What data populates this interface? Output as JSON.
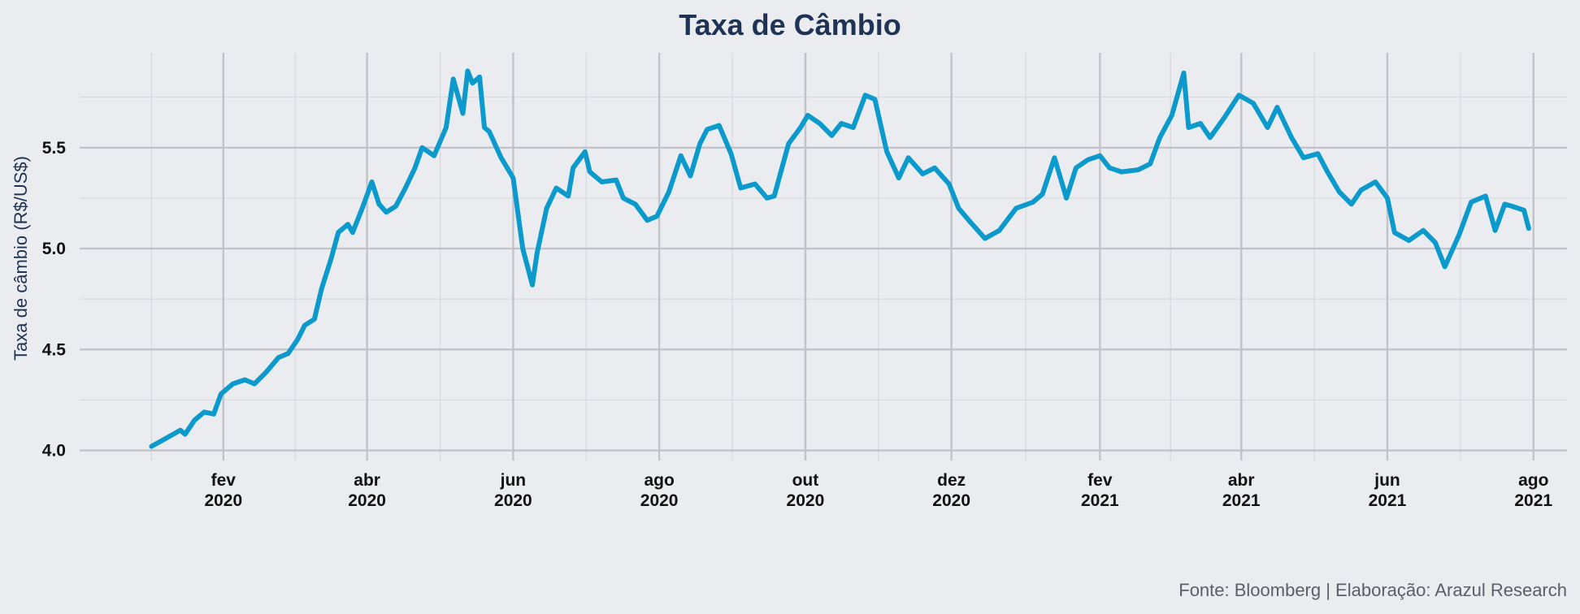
{
  "chart_data": {
    "type": "line",
    "title": "Taxa de Câmbio",
    "xlabel": "",
    "ylabel": "Taxa de câmbio (R$/US$)",
    "caption": "Fonte: Bloomberg | Elaboração: Arazul Research",
    "ylim": [
      3.95,
      5.97
    ],
    "xlim": [
      "2019-12-03",
      "2021-08-15"
    ],
    "y_ticks": [
      {
        "value": 4.0,
        "label": "4.0"
      },
      {
        "value": 4.5,
        "label": "4.5"
      },
      {
        "value": 5.0,
        "label": "5.0"
      },
      {
        "value": 5.5,
        "label": "5.5"
      }
    ],
    "x_ticks": [
      {
        "date": "2020-02-01",
        "label": [
          "fev",
          "2020"
        ]
      },
      {
        "date": "2020-04-01",
        "label": [
          "abr",
          "2020"
        ]
      },
      {
        "date": "2020-06-01",
        "label": [
          "jun",
          "2020"
        ]
      },
      {
        "date": "2020-08-01",
        "label": [
          "ago",
          "2020"
        ]
      },
      {
        "date": "2020-10-01",
        "label": [
          "out",
          "2020"
        ]
      },
      {
        "date": "2020-12-01",
        "label": [
          "dez",
          "2020"
        ]
      },
      {
        "date": "2021-02-01",
        "label": [
          "fev",
          "2021"
        ]
      },
      {
        "date": "2021-04-01",
        "label": [
          "abr",
          "2021"
        ]
      },
      {
        "date": "2021-06-01",
        "label": [
          "jun",
          "2021"
        ]
      },
      {
        "date": "2021-08-01",
        "label": [
          "ago",
          "2021"
        ]
      }
    ],
    "grid": true,
    "line_color": "#0b9acb",
    "series": [
      {
        "x": [
          "2020-01-02",
          "2020-01-08",
          "2020-01-14",
          "2020-01-16",
          "2020-01-20",
          "2020-01-24",
          "2020-01-28",
          "2020-01-31",
          "2020-02-05",
          "2020-02-10",
          "2020-02-14",
          "2020-02-19",
          "2020-02-24",
          "2020-02-28",
          "2020-03-03",
          "2020-03-06",
          "2020-03-10",
          "2020-03-13",
          "2020-03-17",
          "2020-03-20",
          "2020-03-24",
          "2020-03-26",
          "2020-03-30",
          "2020-04-03",
          "2020-04-06",
          "2020-04-09",
          "2020-04-13",
          "2020-04-17",
          "2020-04-21",
          "2020-04-24",
          "2020-04-29",
          "2020-05-04",
          "2020-05-07",
          "2020-05-11",
          "2020-05-13",
          "2020-05-15",
          "2020-05-18",
          "2020-05-20",
          "2020-05-22",
          "2020-05-27",
          "2020-06-01",
          "2020-06-05",
          "2020-06-09",
          "2020-06-11",
          "2020-06-15",
          "2020-06-19",
          "2020-06-24",
          "2020-06-26",
          "2020-07-01",
          "2020-07-03",
          "2020-07-08",
          "2020-07-14",
          "2020-07-17",
          "2020-07-22",
          "2020-07-27",
          "2020-07-31",
          "2020-08-05",
          "2020-08-10",
          "2020-08-14",
          "2020-08-18",
          "2020-08-21",
          "2020-08-26",
          "2020-08-31",
          "2020-09-04",
          "2020-09-10",
          "2020-09-15",
          "2020-09-18",
          "2020-09-24",
          "2020-09-29",
          "2020-10-02",
          "2020-10-07",
          "2020-10-12",
          "2020-10-16",
          "2020-10-21",
          "2020-10-26",
          "2020-10-30",
          "2020-11-04",
          "2020-11-09",
          "2020-11-13",
          "2020-11-19",
          "2020-11-24",
          "2020-11-30",
          "2020-12-04",
          "2020-12-09",
          "2020-12-15",
          "2020-12-21",
          "2020-12-28",
          "2021-01-04",
          "2021-01-08",
          "2021-01-13",
          "2021-01-18",
          "2021-01-22",
          "2021-01-27",
          "2021-02-01",
          "2021-02-05",
          "2021-02-10",
          "2021-02-17",
          "2021-02-22",
          "2021-02-26",
          "2021-03-03",
          "2021-03-08",
          "2021-03-10",
          "2021-03-15",
          "2021-03-19",
          "2021-03-25",
          "2021-03-31",
          "2021-04-06",
          "2021-04-12",
          "2021-04-16",
          "2021-04-22",
          "2021-04-27",
          "2021-05-03",
          "2021-05-07",
          "2021-05-12",
          "2021-05-17",
          "2021-05-21",
          "2021-05-27",
          "2021-06-01",
          "2021-06-04",
          "2021-06-10",
          "2021-06-16",
          "2021-06-21",
          "2021-06-25",
          "2021-07-01",
          "2021-07-06",
          "2021-07-12",
          "2021-07-16",
          "2021-07-20",
          "2021-07-23",
          "2021-07-28",
          "2021-07-30"
        ],
        "y": [
          4.02,
          4.06,
          4.1,
          4.08,
          4.15,
          4.19,
          4.18,
          4.28,
          4.33,
          4.35,
          4.33,
          4.39,
          4.46,
          4.48,
          4.55,
          4.62,
          4.65,
          4.8,
          4.95,
          5.08,
          5.12,
          5.08,
          5.2,
          5.33,
          5.22,
          5.18,
          5.21,
          5.3,
          5.4,
          5.5,
          5.46,
          5.6,
          5.84,
          5.67,
          5.88,
          5.82,
          5.85,
          5.6,
          5.58,
          5.45,
          5.35,
          5.0,
          4.82,
          4.98,
          5.2,
          5.3,
          5.26,
          5.4,
          5.48,
          5.38,
          5.33,
          5.34,
          5.25,
          5.22,
          5.14,
          5.16,
          5.28,
          5.46,
          5.36,
          5.52,
          5.59,
          5.61,
          5.47,
          5.3,
          5.32,
          5.25,
          5.26,
          5.52,
          5.6,
          5.66,
          5.62,
          5.56,
          5.62,
          5.6,
          5.76,
          5.74,
          5.48,
          5.35,
          5.45,
          5.37,
          5.4,
          5.32,
          5.2,
          5.13,
          5.05,
          5.09,
          5.2,
          5.23,
          5.27,
          5.45,
          5.25,
          5.4,
          5.44,
          5.46,
          5.4,
          5.38,
          5.39,
          5.42,
          5.55,
          5.66,
          5.87,
          5.6,
          5.62,
          5.55,
          5.65,
          5.76,
          5.72,
          5.6,
          5.7,
          5.55,
          5.45,
          5.47,
          5.38,
          5.28,
          5.22,
          5.29,
          5.33,
          5.25,
          5.08,
          5.04,
          5.09,
          5.03,
          4.91,
          5.07,
          5.23,
          5.26,
          5.09,
          5.22,
          5.21,
          5.19,
          5.1
        ]
      }
    ]
  }
}
